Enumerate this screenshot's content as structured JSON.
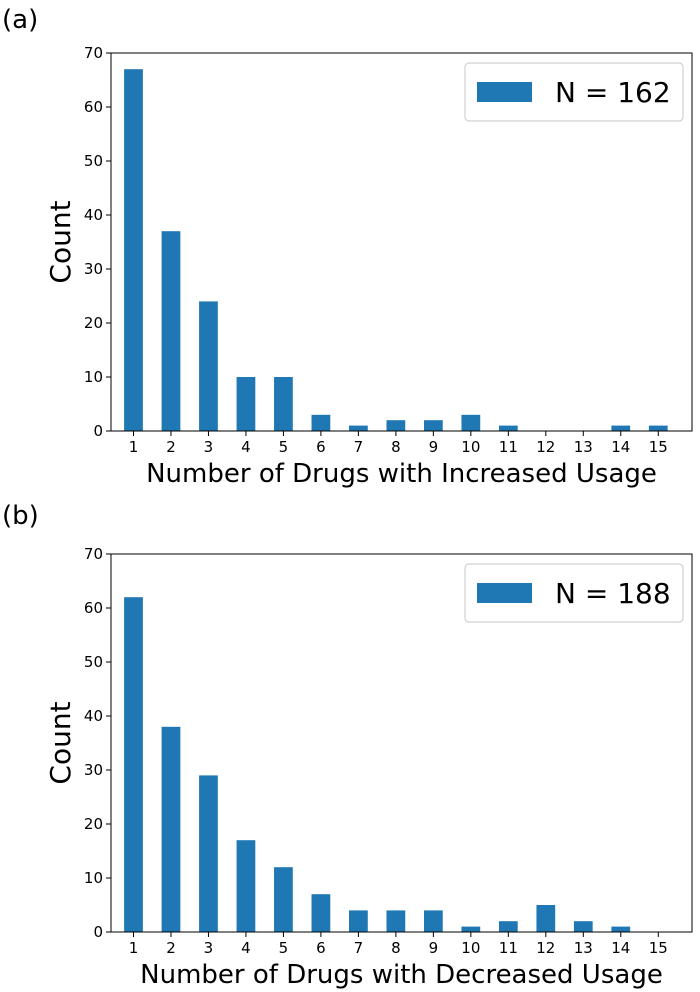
{
  "chart_data": [
    {
      "panel_label": "(a)",
      "type": "bar",
      "categories": [
        "1",
        "2",
        "3",
        "4",
        "5",
        "6",
        "7",
        "8",
        "9",
        "10",
        "11",
        "12",
        "13",
        "14",
        "15"
      ],
      "values": [
        67,
        37,
        24,
        10,
        10,
        3,
        1,
        2,
        2,
        3,
        1,
        0,
        0,
        1,
        1
      ],
      "xlabel": "Number of Drugs with Increased Usage",
      "ylabel": "Count",
      "ylim": [
        0,
        70
      ],
      "yticks": [
        0,
        10,
        20,
        30,
        40,
        50,
        60,
        70
      ],
      "legend": {
        "label": "N = 162",
        "position": "top-right"
      },
      "grid": false,
      "color": "#1f77b4"
    },
    {
      "panel_label": "(b)",
      "type": "bar",
      "categories": [
        "1",
        "2",
        "3",
        "4",
        "5",
        "6",
        "7",
        "8",
        "9",
        "10",
        "11",
        "12",
        "13",
        "14",
        "15"
      ],
      "values": [
        62,
        38,
        29,
        17,
        12,
        7,
        4,
        4,
        4,
        1,
        2,
        5,
        2,
        1,
        0
      ],
      "xlabel": "Number of Drugs with Decreased Usage",
      "ylabel": "Count",
      "ylim": [
        0,
        70
      ],
      "yticks": [
        0,
        10,
        20,
        30,
        40,
        50,
        60,
        70
      ],
      "legend": {
        "label": "N = 188",
        "position": "top-right"
      },
      "grid": false,
      "color": "#1f77b4"
    }
  ]
}
